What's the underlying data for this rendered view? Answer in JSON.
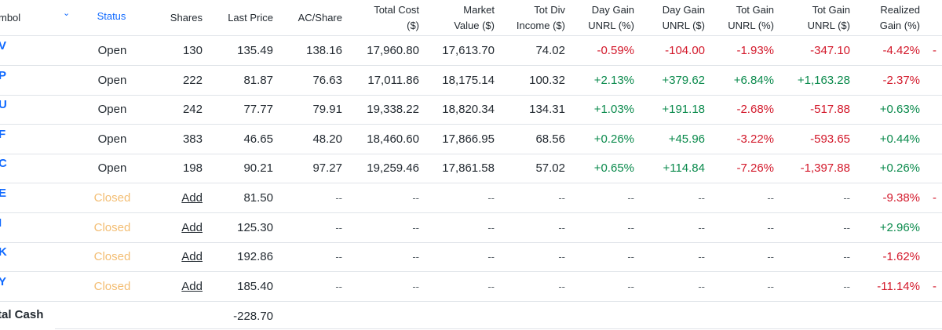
{
  "headers": {
    "symbol": "mbol",
    "status": "Status",
    "shares": "Shares",
    "last_price": "Last Price",
    "ac_share": "AC/Share",
    "total_cost": [
      "Total Cost",
      "($)"
    ],
    "market_value": [
      "Market",
      "Value ($)"
    ],
    "tot_div": [
      "Tot Div",
      "Income ($)"
    ],
    "day_gain_pct": [
      "Day Gain",
      "UNRL (%)"
    ],
    "day_gain_usd": [
      "Day Gain",
      "UNRL ($)"
    ],
    "tot_gain_pct": [
      "Tot Gain",
      "UNRL (%)"
    ],
    "tot_gain_usd": [
      "Tot Gain",
      "UNRL ($)"
    ],
    "realized": [
      "Realized",
      "Gain (%)"
    ]
  },
  "rows": [
    {
      "symbol": "V",
      "status": "Open",
      "shares": "130",
      "last_price": "135.49",
      "ac_share": "138.16",
      "total_cost": "17,960.80",
      "market_value": "17,613.70",
      "tot_div": "74.02",
      "day_gain_pct": "-0.59%",
      "day_gain_usd": "-104.00",
      "tot_gain_pct": "-1.93%",
      "tot_gain_usd": "-347.10",
      "realized": "-4.42%",
      "extra": "-"
    },
    {
      "symbol": "P",
      "status": "Open",
      "shares": "222",
      "last_price": "81.87",
      "ac_share": "76.63",
      "total_cost": "17,011.86",
      "market_value": "18,175.14",
      "tot_div": "100.32",
      "day_gain_pct": "+2.13%",
      "day_gain_usd": "+379.62",
      "tot_gain_pct": "+6.84%",
      "tot_gain_usd": "+1,163.28",
      "realized": "-2.37%",
      "extra": ""
    },
    {
      "symbol": "U",
      "status": "Open",
      "shares": "242",
      "last_price": "77.77",
      "ac_share": "79.91",
      "total_cost": "19,338.22",
      "market_value": "18,820.34",
      "tot_div": "134.31",
      "day_gain_pct": "+1.03%",
      "day_gain_usd": "+191.18",
      "tot_gain_pct": "-2.68%",
      "tot_gain_usd": "-517.88",
      "realized": "+0.63%",
      "extra": ""
    },
    {
      "symbol": "F",
      "status": "Open",
      "shares": "383",
      "last_price": "46.65",
      "ac_share": "48.20",
      "total_cost": "18,460.60",
      "market_value": "17,866.95",
      "tot_div": "68.56",
      "day_gain_pct": "+0.26%",
      "day_gain_usd": "+45.96",
      "tot_gain_pct": "-3.22%",
      "tot_gain_usd": "-593.65",
      "realized": "+0.44%",
      "extra": ""
    },
    {
      "symbol": "C",
      "status": "Open",
      "shares": "198",
      "last_price": "90.21",
      "ac_share": "97.27",
      "total_cost": "19,259.46",
      "market_value": "17,861.58",
      "tot_div": "57.02",
      "day_gain_pct": "+0.65%",
      "day_gain_usd": "+114.84",
      "tot_gain_pct": "-7.26%",
      "tot_gain_usd": "-1,397.88",
      "realized": "+0.26%",
      "extra": ""
    },
    {
      "symbol": "E",
      "status": "Closed",
      "shares": "Add",
      "last_price": "81.50",
      "ac_share": "--",
      "total_cost": "--",
      "market_value": "--",
      "tot_div": "--",
      "day_gain_pct": "--",
      "day_gain_usd": "--",
      "tot_gain_pct": "--",
      "tot_gain_usd": "--",
      "realized": "-9.38%",
      "extra": "-"
    },
    {
      "symbol": "I",
      "status": "Closed",
      "shares": "Add",
      "last_price": "125.30",
      "ac_share": "--",
      "total_cost": "--",
      "market_value": "--",
      "tot_div": "--",
      "day_gain_pct": "--",
      "day_gain_usd": "--",
      "tot_gain_pct": "--",
      "tot_gain_usd": "--",
      "realized": "+2.96%",
      "extra": ""
    },
    {
      "symbol": "K",
      "status": "Closed",
      "shares": "Add",
      "last_price": "192.86",
      "ac_share": "--",
      "total_cost": "--",
      "market_value": "--",
      "tot_div": "--",
      "day_gain_pct": "--",
      "day_gain_usd": "--",
      "tot_gain_pct": "--",
      "tot_gain_usd": "--",
      "realized": "-1.62%",
      "extra": ""
    },
    {
      "symbol": "Y",
      "status": "Closed",
      "shares": "Add",
      "last_price": "185.40",
      "ac_share": "--",
      "total_cost": "--",
      "market_value": "--",
      "tot_div": "--",
      "day_gain_pct": "--",
      "day_gain_usd": "--",
      "tot_gain_pct": "--",
      "tot_gain_usd": "--",
      "realized": "-11.14%",
      "extra": "-"
    }
  ],
  "total_cash": {
    "label": "tal Cash",
    "value": "-228.70"
  },
  "colors": {
    "accent": "#0f69ff",
    "positive": "#0a8a4c",
    "negative": "#d3192b",
    "closed": "#f3bd72"
  }
}
